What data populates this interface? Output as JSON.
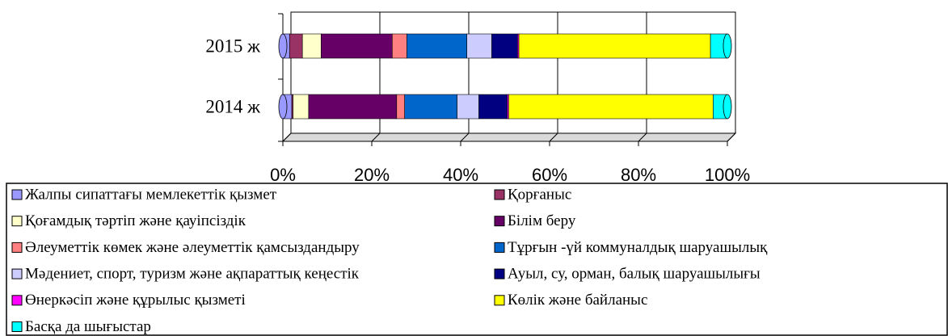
{
  "chart_data": {
    "type": "stacked_bar_100",
    "categories": [
      "2015 ж",
      "2014 ж"
    ],
    "series": [
      {
        "name": "Жалпы сипаттағы мемлекеттік қызмет",
        "color": "#9999ff",
        "values": [
          1.5,
          2
        ]
      },
      {
        "name": "Қорғаныс",
        "color": "#993366",
        "values": [
          2.9,
          0.3
        ]
      },
      {
        "name": "Қоғамдық тәртіп  және қауіпсіздік",
        "color": "#ffffcc",
        "values": [
          4.2,
          3.5
        ]
      },
      {
        "name": "Білім беру",
        "color": "#660066",
        "values": [
          16,
          19.8
        ]
      },
      {
        "name": "Әлеуметтік көмек және әлеуметтік қамсыздандыру",
        "color": "#ff8080",
        "values": [
          3.3,
          1.8
        ]
      },
      {
        "name": "Тұрғын -үй коммуналдық шаруашылық",
        "color": "#0066cc",
        "values": [
          13.5,
          11.8
        ]
      },
      {
        "name": "Мәдениет, спорт, туризм  және ақпараттық кеңестік",
        "color": "#ccccff",
        "values": [
          5.6,
          4.9
        ]
      },
      {
        "name": "Ауыл, су, орман, балық шаруашылығы",
        "color": "#000080",
        "values": [
          5.8,
          6.4
        ]
      },
      {
        "name": "Өнеркәсіп және құрылыс қызметі",
        "color": "#ff00ff",
        "values": [
          0.3,
          0.3
        ]
      },
      {
        "name": "Көлік және байланыс",
        "color": "#ffff00",
        "values": [
          43.1,
          46
        ]
      },
      {
        "name": "Басқа да шығыстар",
        "color": "#00ffff",
        "values": [
          3.8,
          3.2
        ]
      }
    ],
    "xlim": [
      0,
      100
    ],
    "xticks": [
      {
        "value": 0,
        "label": "0%"
      },
      {
        "value": 20,
        "label": "20%"
      },
      {
        "value": 40,
        "label": "40%"
      },
      {
        "value": 60,
        "label": "60%"
      },
      {
        "value": 80,
        "label": "80%"
      },
      {
        "value": 100,
        "label": "100%"
      }
    ],
    "grid": true
  }
}
